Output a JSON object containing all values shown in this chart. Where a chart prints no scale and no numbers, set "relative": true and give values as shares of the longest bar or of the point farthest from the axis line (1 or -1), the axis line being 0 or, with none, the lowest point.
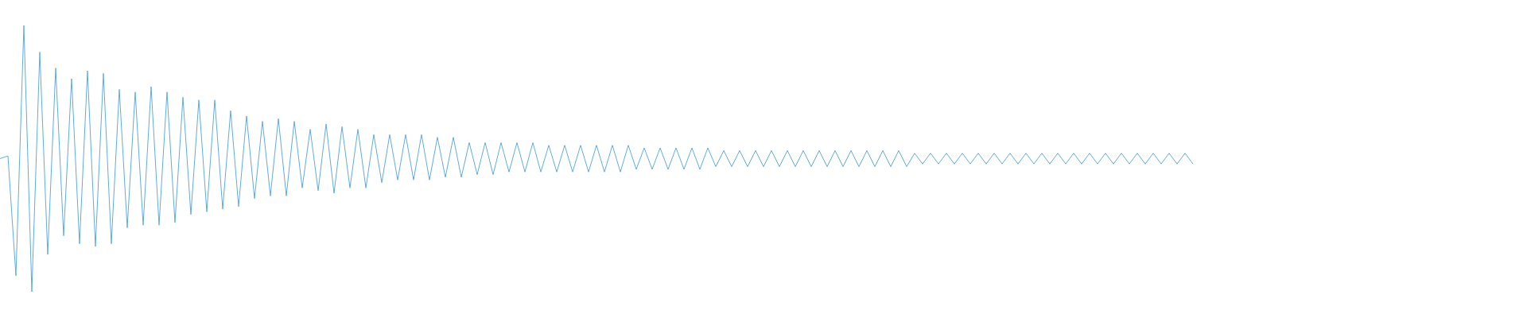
{
  "chart_data": {
    "type": "line",
    "relative": true,
    "line_style": "solid",
    "color": "#5dade2",
    "categories": [
      null,
      null,
      null,
      null,
      null,
      null,
      null,
      null,
      null,
      null,
      null,
      null,
      null,
      null,
      null,
      null,
      null,
      null,
      null,
      null,
      null,
      null,
      null,
      null,
      null,
      null,
      null,
      null,
      null,
      null,
      null,
      null,
      null,
      null,
      null,
      null,
      null,
      null,
      null,
      null,
      null,
      null,
      null,
      null,
      null,
      null,
      null,
      null,
      null,
      null,
      null,
      null,
      null,
      null,
      null,
      null,
      null,
      null,
      null,
      null,
      null,
      null,
      null,
      null,
      null,
      null,
      null,
      null,
      null,
      null,
      null,
      null,
      null,
      null,
      null,
      null,
      null,
      null,
      null,
      null,
      null,
      null,
      null,
      null,
      null,
      null,
      null,
      null,
      null,
      null,
      null,
      null,
      null,
      null,
      null,
      null,
      null,
      null,
      null,
      null,
      null,
      null,
      null,
      null,
      null,
      null,
      null,
      null,
      null,
      null,
      null,
      null,
      null,
      null,
      null,
      null,
      null,
      null,
      null,
      null,
      null,
      null,
      null,
      null,
      null,
      null,
      null,
      null,
      null,
      null,
      null,
      null,
      null,
      null,
      null,
      null,
      null,
      null,
      null,
      null,
      null,
      null,
      null,
      null,
      null,
      null,
      null,
      null,
      null,
      null,
      null,
      null,
      null,
      null,
      null,
      null,
      null,
      null,
      null,
      null,
      null,
      null,
      null,
      null,
      null,
      null,
      null,
      null,
      null,
      null,
      null,
      null,
      null,
      null,
      null,
      null,
      null,
      null,
      null,
      null,
      null,
      null,
      null,
      null,
      null,
      null,
      null,
      null,
      null,
      null,
      null,
      null,
      null
    ],
    "values": [
      0.5,
      0.51,
      0.06,
      1,
      0,
      0.9,
      0.14,
      0.84,
      0.21,
      0.8,
      0.18,
      0.83,
      0.17,
      0.82,
      0.18,
      0.76,
      0.24,
      0.75,
      0.25,
      0.77,
      0.25,
      0.75,
      0.26,
      0.73,
      0.29,
      0.72,
      0.3,
      0.72,
      0.31,
      0.68,
      0.32,
      0.66,
      0.35,
      0.64,
      0.36,
      0.65,
      0.36,
      0.64,
      0.39,
      0.61,
      0.38,
      0.63,
      0.37,
      0.62,
      0.39,
      0.61,
      0.39,
      0.59,
      0.41,
      0.59,
      0.42,
      0.59,
      0.42,
      0.59,
      0.42,
      0.58,
      0.43,
      0.58,
      0.43,
      0.56,
      0.44,
      0.56,
      0.44,
      0.56,
      0.45,
      0.56,
      0.45,
      0.56,
      0.45,
      0.55,
      0.45,
      0.55,
      0.45,
      0.55,
      0.45,
      0.55,
      0.45,
      0.55,
      0.45,
      0.55,
      0.46,
      0.54,
      0.46,
      0.54,
      0.46,
      0.54,
      0.46,
      0.54,
      0.46,
      0.54,
      0.47,
      0.53,
      0.47,
      0.53,
      0.47,
      0.53,
      0.47,
      0.53,
      0.47,
      0.53,
      0.47,
      0.53,
      0.47,
      0.53,
      0.47,
      0.53,
      0.47,
      0.53,
      0.47,
      0.53,
      0.47,
      0.53,
      0.47,
      0.53,
      0.47,
      0.52,
      0.48,
      0.52,
      0.48,
      0.52,
      0.48,
      0.52,
      0.48,
      0.52,
      0.48,
      0.52,
      0.48,
      0.52,
      0.48,
      0.52,
      0.48,
      0.52,
      0.48,
      0.52,
      0.48,
      0.52,
      0.48,
      0.52,
      0.48,
      0.52,
      0.48,
      0.52,
      0.48,
      0.52,
      0.48,
      0.52,
      0.48,
      0.52,
      0.48,
      0.52,
      0.48,
      null,
      null,
      null,
      null,
      null,
      null,
      null,
      null,
      null,
      null,
      null,
      null,
      null,
      null,
      null,
      null,
      null,
      null,
      null,
      null,
      null,
      null,
      null,
      null,
      null,
      null,
      null,
      null,
      null,
      null,
      null,
      null,
      null,
      null,
      null,
      null,
      null,
      null,
      null,
      null,
      null,
      null
    ]
  }
}
